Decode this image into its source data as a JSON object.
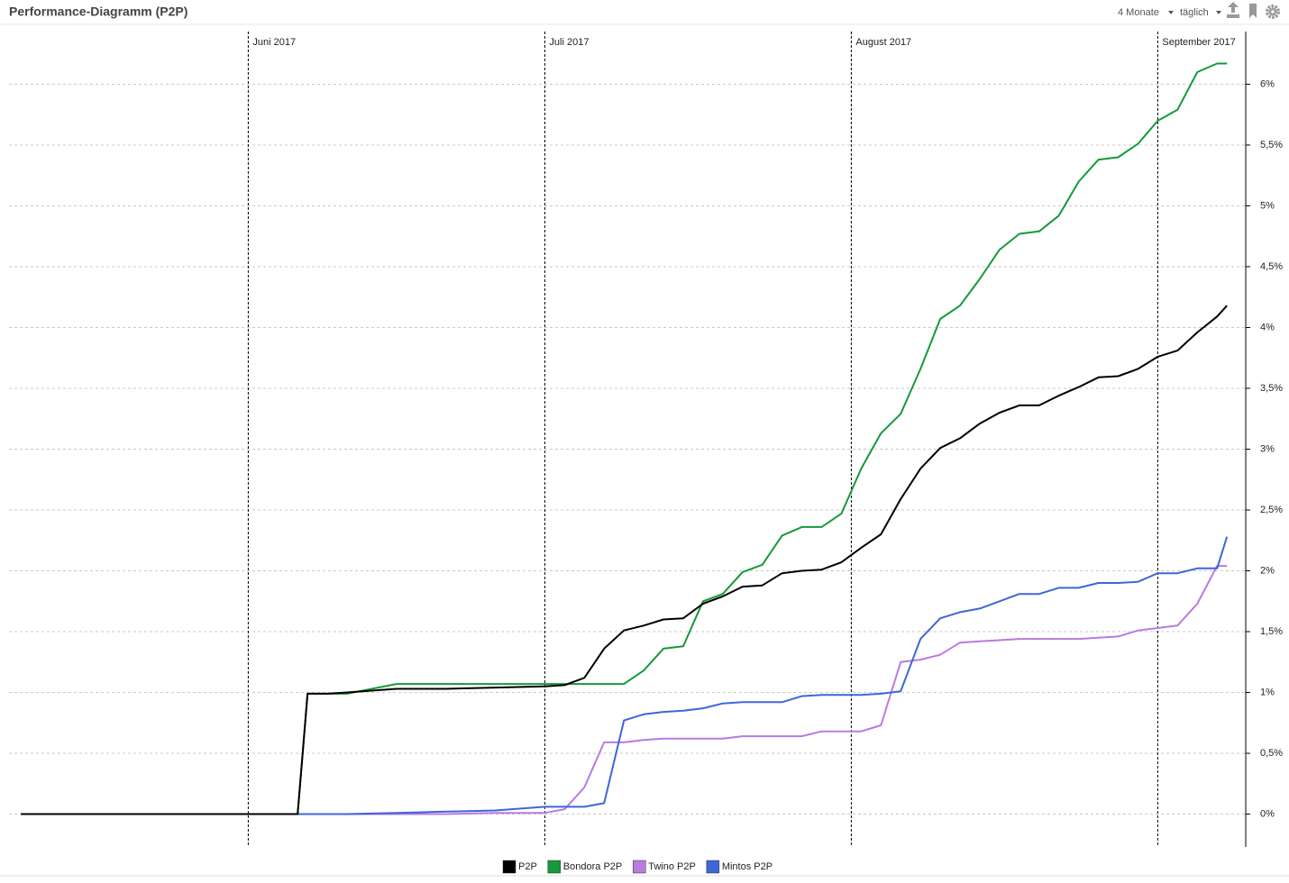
{
  "header": {
    "title": "Performance-Diagramm (P2P)",
    "period": "4 Monate",
    "interval": "täglich"
  },
  "chart_data": {
    "type": "line",
    "x": [
      -23,
      5,
      6,
      8,
      10,
      15,
      20,
      25,
      30,
      32,
      34,
      36,
      38,
      40,
      42,
      44,
      46,
      48,
      50,
      52,
      54,
      56,
      58,
      60,
      62,
      64,
      66,
      68,
      70,
      72,
      74,
      76,
      78,
      80,
      82,
      84,
      86,
      88,
      90,
      92,
      94,
      96,
      98,
      99
    ],
    "xlim": [
      -24.2,
      100.9
    ],
    "xticks": [
      {
        "value": 0,
        "label": "Juni 2017"
      },
      {
        "value": 30,
        "label": "Juli 2017"
      },
      {
        "value": 61,
        "label": "August 2017"
      },
      {
        "value": 92,
        "label": "September 2017"
      }
    ],
    "ylim": [
      -0.27,
      6.47
    ],
    "yticks": [
      {
        "value": 0,
        "label": "0%"
      },
      {
        "value": 0.5,
        "label": "0,5%"
      },
      {
        "value": 1,
        "label": "1%"
      },
      {
        "value": 1.5,
        "label": "1,5%"
      },
      {
        "value": 2,
        "label": "2%"
      },
      {
        "value": 2.5,
        "label": "2,5%"
      },
      {
        "value": 3,
        "label": "3%"
      },
      {
        "value": 3.5,
        "label": "3,5%"
      },
      {
        "value": 4,
        "label": "4%"
      },
      {
        "value": 4.5,
        "label": "4,5%"
      },
      {
        "value": 5,
        "label": "5%"
      },
      {
        "value": 5.5,
        "label": "5,5%"
      },
      {
        "value": 6,
        "label": "6%"
      }
    ],
    "grid": true,
    "series": [
      {
        "name": "P2P",
        "color": "#000000",
        "values": [
          0,
          0,
          0.99,
          0.99,
          1.0,
          1.03,
          1.03,
          1.04,
          1.05,
          1.06,
          1.12,
          1.36,
          1.51,
          1.55,
          1.6,
          1.61,
          1.73,
          1.79,
          1.87,
          1.88,
          1.98,
          2.0,
          2.01,
          2.07,
          2.19,
          2.3,
          2.59,
          2.84,
          3.01,
          3.09,
          3.21,
          3.3,
          3.36,
          3.36,
          3.44,
          3.51,
          3.59,
          3.6,
          3.66,
          3.76,
          3.81,
          3.96,
          4.09,
          4.18
        ]
      },
      {
        "name": "Bondora P2P",
        "color": "#15993a",
        "values": [
          0,
          0,
          0.99,
          0.99,
          0.99,
          1.07,
          1.07,
          1.07,
          1.07,
          1.07,
          1.07,
          1.07,
          1.07,
          1.18,
          1.36,
          1.38,
          1.75,
          1.81,
          1.99,
          2.05,
          2.29,
          2.36,
          2.36,
          2.47,
          2.84,
          3.13,
          3.29,
          3.66,
          4.07,
          4.18,
          4.4,
          4.64,
          4.77,
          4.79,
          4.92,
          5.2,
          5.38,
          5.4,
          5.51,
          5.7,
          5.79,
          6.1,
          6.17,
          6.17
        ]
      },
      {
        "name": "Twino P2P",
        "color": "#b87be0",
        "values": [
          0,
          0,
          0,
          0,
          0,
          0,
          0,
          0.01,
          0.01,
          0.04,
          0.22,
          0.59,
          0.59,
          0.61,
          0.62,
          0.62,
          0.62,
          0.62,
          0.64,
          0.64,
          0.64,
          0.64,
          0.68,
          0.68,
          0.68,
          0.73,
          1.25,
          1.27,
          1.31,
          1.41,
          1.42,
          1.43,
          1.44,
          1.44,
          1.44,
          1.44,
          1.45,
          1.46,
          1.51,
          1.53,
          1.55,
          1.73,
          2.04,
          2.04
        ]
      },
      {
        "name": "Mintos P2P",
        "color": "#3d66d8",
        "values": [
          0,
          0,
          0,
          0,
          0,
          0.01,
          0.02,
          0.03,
          0.06,
          0.06,
          0.06,
          0.09,
          0.77,
          0.82,
          0.84,
          0.85,
          0.87,
          0.91,
          0.92,
          0.92,
          0.92,
          0.97,
          0.98,
          0.98,
          0.98,
          0.99,
          1.01,
          1.44,
          1.61,
          1.66,
          1.69,
          1.75,
          1.81,
          1.81,
          1.86,
          1.86,
          1.9,
          1.9,
          1.91,
          1.98,
          1.98,
          2.02,
          2.02,
          2.28
        ]
      }
    ]
  }
}
